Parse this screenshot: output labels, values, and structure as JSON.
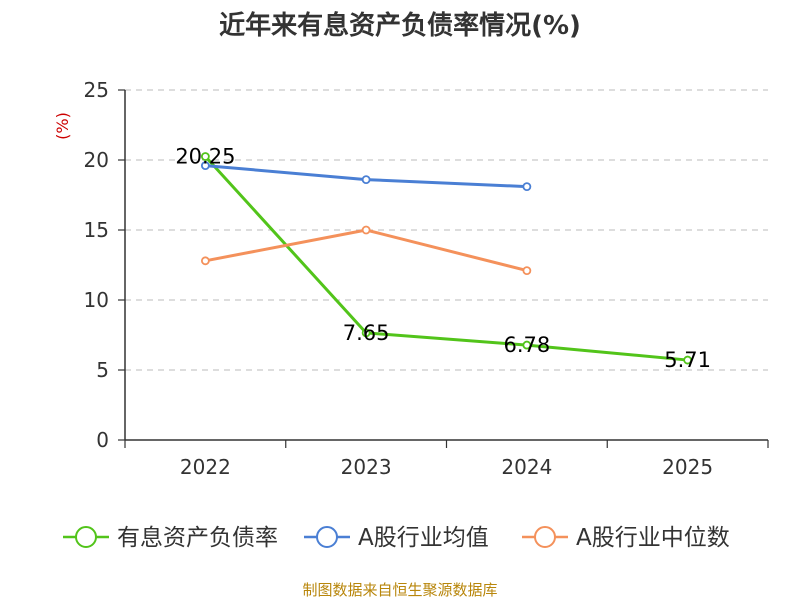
{
  "chart_data": {
    "type": "line",
    "title": "近年来有息资产负债率情况(%)",
    "unit_label": "(%)",
    "categories": [
      "2022",
      "2023",
      "2024",
      "2025"
    ],
    "ylim": [
      0,
      25
    ],
    "yticks": [
      0,
      5,
      10,
      15,
      20,
      25
    ],
    "grid": true,
    "legend_position": "bottom",
    "series": [
      {
        "name": "有息资产负债率",
        "color": "#52c41a",
        "values": [
          20.25,
          7.65,
          6.78,
          5.71
        ],
        "labels": [
          "20.25",
          "7.65",
          "6.78",
          "5.71"
        ]
      },
      {
        "name": "A股行业均值",
        "color": "#4a7fd4",
        "values": [
          19.6,
          18.6,
          18.1,
          null
        ]
      },
      {
        "name": "A股行业中位数",
        "color": "#f4915b",
        "values": [
          12.8,
          15.0,
          12.1,
          null
        ]
      }
    ]
  },
  "source": "制图数据来自恒生聚源数据库"
}
